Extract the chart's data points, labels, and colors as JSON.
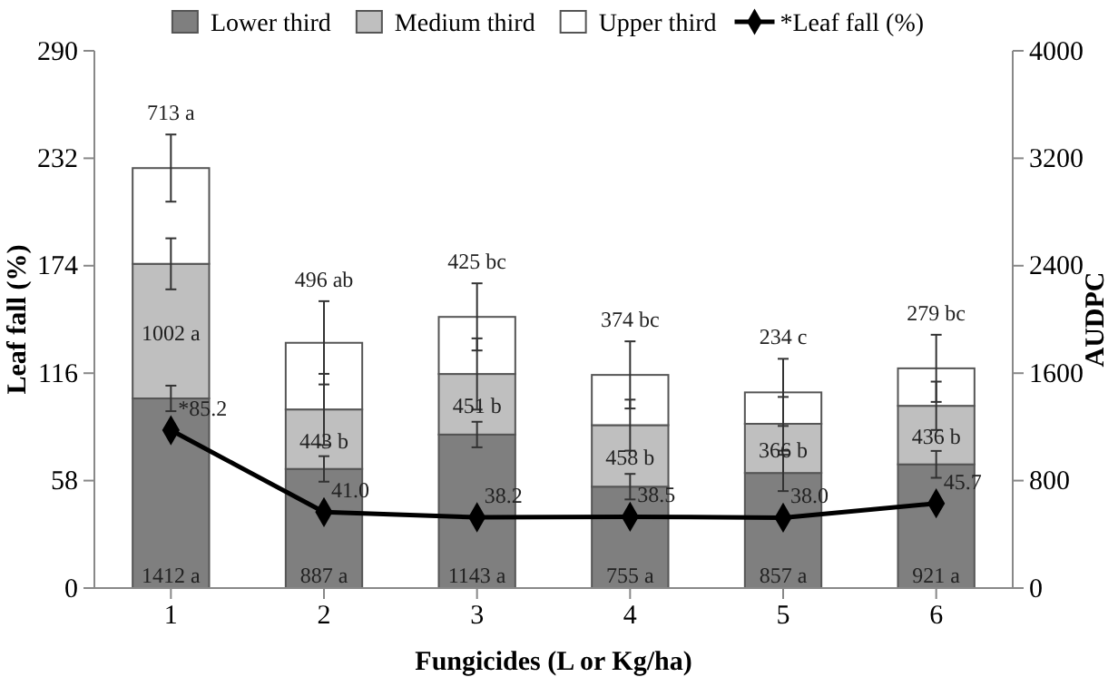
{
  "chart_data": {
    "type": "bar",
    "stacked": true,
    "xlabel": "Fungicides (L or Kg/ha)",
    "ylabel": "Leaf fall (%)",
    "y2label": "AUDPC",
    "categories": [
      "1",
      "2",
      "3",
      "4",
      "5",
      "6"
    ],
    "series": [
      {
        "name": "Lower third",
        "color": "#7f7f7f",
        "axis": "y2",
        "values": [
          1412,
          887,
          1143,
          755,
          857,
          921
        ],
        "value_labels": [
          "1412 a",
          "887 a",
          "1143 a",
          "755 a",
          "857 a",
          "921 a"
        ],
        "errors": [
          95,
          95,
          95,
          95,
          135,
          100
        ]
      },
      {
        "name": "Medium third",
        "color": "#bfbfbf",
        "axis": "y2",
        "values": [
          1002,
          443,
          451,
          458,
          366,
          436
        ],
        "value_labels": [
          "1002 a",
          "443 b",
          "451 b",
          "458 b",
          "366 b",
          "436 b"
        ],
        "errors": [
          190,
          265,
          265,
          190,
          200,
          180
        ]
      },
      {
        "name": "Upper third",
        "color": "#ffffff",
        "axis": "y2",
        "values": [
          713,
          496,
          425,
          374,
          234,
          279
        ],
        "value_labels": [
          "713 a",
          "496 ab",
          "425 bc",
          "374 bc",
          "234 c",
          "279 bc"
        ],
        "errors": [
          250,
          310,
          250,
          250,
          250,
          250
        ]
      },
      {
        "name": "*Leaf fall (%)",
        "type": "line",
        "color": "#000000",
        "marker": "diamond",
        "values": [
          85.2,
          41.0,
          38.2,
          38.5,
          38.0,
          45.7
        ],
        "value_labels": [
          "*85.2",
          "41.0",
          "38.2",
          "38.5",
          "38.0",
          "45.7"
        ]
      }
    ],
    "ylim": [
      0,
      290
    ],
    "yticks": [
      0,
      58,
      116,
      174,
      232,
      290
    ],
    "y2lim": [
      0,
      4000
    ],
    "y2ticks": [
      0,
      800,
      1600,
      2400,
      3200,
      4000
    ],
    "legend": "top",
    "grid": false
  }
}
